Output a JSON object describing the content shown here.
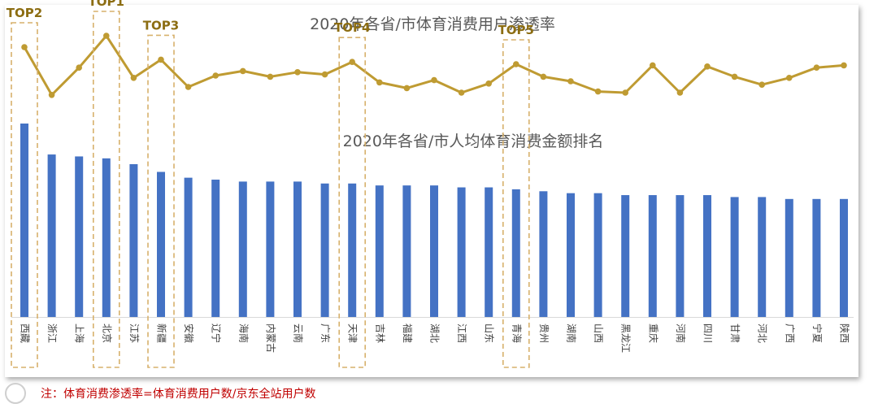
{
  "chart_data": {
    "type": "line+bar",
    "categories": [
      "西藏",
      "浙江",
      "上海",
      "北京",
      "江苏",
      "新疆",
      "安徽",
      "辽宁",
      "海南",
      "内蒙古",
      "云南",
      "广东",
      "天津",
      "吉林",
      "福建",
      "湖北",
      "江西",
      "山东",
      "青海",
      "贵州",
      "湖南",
      "山西",
      "黑龙江",
      "重庆",
      "河南",
      "四川",
      "甘肃",
      "河北",
      "广西",
      "宁夏",
      "陕西"
    ],
    "line_series": {
      "title": "2020年各省/市体育消费用户渗透率",
      "color": "#bf9b32",
      "values": [
        80,
        38,
        62,
        90,
        53,
        69,
        45,
        55,
        59,
        54,
        58,
        56,
        67,
        49,
        44,
        51,
        40,
        48,
        65,
        54,
        50,
        41,
        40,
        64,
        40,
        63,
        54,
        47,
        53,
        62,
        64
      ],
      "ylim": [
        0,
        100
      ]
    },
    "bar_series": {
      "title": "2020年各省/市人均体育消费金额排名",
      "color": "#4472c4",
      "values": [
        100,
        84,
        83,
        82,
        79,
        75,
        72,
        71,
        70,
        70,
        70,
        69,
        69,
        68,
        68,
        68,
        67,
        67,
        66,
        65,
        64,
        64,
        63,
        63,
        63,
        63,
        62,
        62,
        61,
        61,
        61
      ],
      "ylim": [
        0,
        100
      ]
    },
    "top_labels": [
      {
        "index": 3,
        "label": "TOP1"
      },
      {
        "index": 0,
        "label": "TOP2"
      },
      {
        "index": 5,
        "label": "TOP3"
      },
      {
        "index": 12,
        "label": "TOP4"
      },
      {
        "index": 18,
        "label": "TOP5"
      }
    ],
    "highlight_color": "#d7b16c",
    "label_color": "#8c6d12"
  },
  "footnote": "注：体育消费渗透率=体育消费用户数/京东全站用户数"
}
